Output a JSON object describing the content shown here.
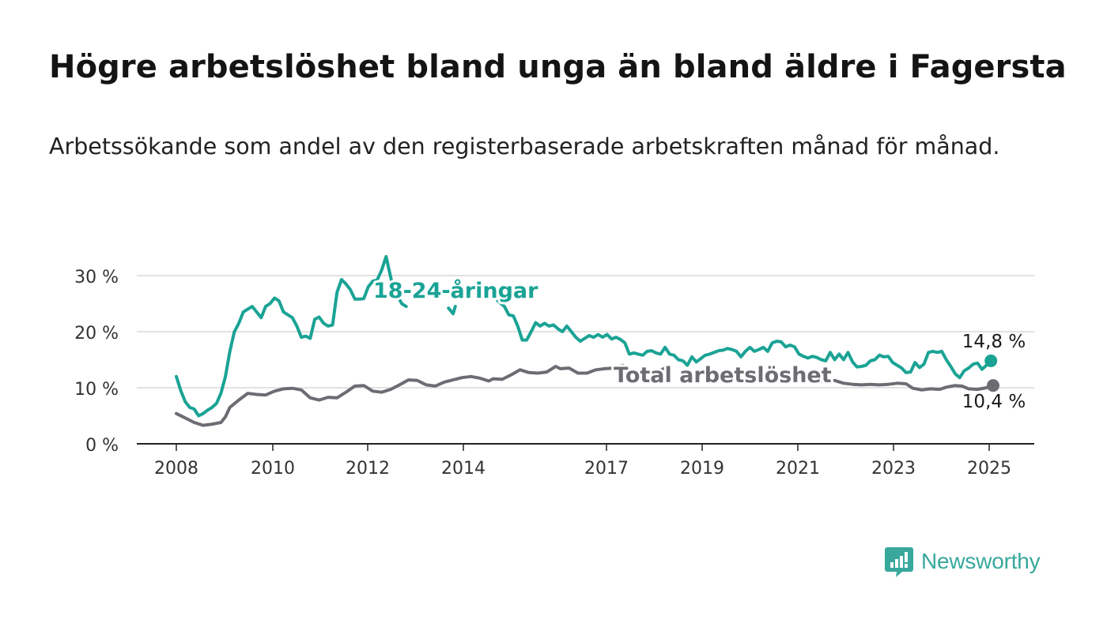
{
  "header": {
    "title": "Högre arbetslöshet bland unga än bland äldre i Fagersta",
    "subtitle": "Arbetssökande som andel av den registerbaserade arbetskraften månad för månad."
  },
  "brand": {
    "name": "Newsworthy",
    "icon": "newsworthy-logo-icon",
    "color": "#38a89d"
  },
  "chart_data": {
    "type": "line",
    "title": "Högre arbetslöshet bland unga än bland äldre i Fagersta",
    "subtitle": "Arbetssökande som andel av den registerbaserade arbetskraften månad för månad.",
    "xlabel": "",
    "ylabel": "",
    "xlim": [
      2008,
      2025.6
    ],
    "ylim": [
      0,
      32
    ],
    "y_ticks": [
      0,
      10,
      20,
      30
    ],
    "y_tick_labels": [
      "0 %",
      "10 %",
      "20 %",
      "30 %"
    ],
    "x_ticks": [
      2008,
      2010,
      2012,
      2014,
      2017,
      2019,
      2021,
      2023,
      2025
    ],
    "x_tick_labels": [
      "2008",
      "2010",
      "2012",
      "2014",
      "2017",
      "2019",
      "2021",
      "2023",
      "2025"
    ],
    "grid": "horizontal",
    "legend": "direct labels on lines",
    "series": [
      {
        "name": "18-24-åringar",
        "color": "#1aa395",
        "end_label": "14,8 %",
        "points": [
          [
            2008.0,
            12.0
          ],
          [
            2008.1,
            9.5
          ],
          [
            2008.2,
            7.5
          ],
          [
            2008.3,
            6.5
          ],
          [
            2008.4,
            6.2
          ],
          [
            2008.5,
            5.0
          ],
          [
            2008.6,
            5.4
          ],
          [
            2008.7,
            6.0
          ],
          [
            2008.8,
            6.5
          ],
          [
            2008.9,
            7.2
          ],
          [
            2009.0,
            9.0
          ],
          [
            2009.1,
            12.0
          ],
          [
            2009.2,
            16.5
          ],
          [
            2009.3,
            20.0
          ],
          [
            2009.4,
            21.5
          ],
          [
            2009.5,
            23.5
          ],
          [
            2009.6,
            24.0
          ],
          [
            2009.7,
            24.5
          ],
          [
            2009.8,
            23.5
          ],
          [
            2009.9,
            22.5
          ],
          [
            2010.0,
            24.5
          ],
          [
            2010.1,
            25.0
          ],
          [
            2010.2,
            26.0
          ],
          [
            2010.3,
            25.5
          ],
          [
            2010.4,
            23.5
          ],
          [
            2010.5,
            23.0
          ],
          [
            2010.6,
            22.5
          ],
          [
            2010.7,
            21.0
          ],
          [
            2010.8,
            19.0
          ],
          [
            2010.9,
            19.2
          ],
          [
            2011.0,
            18.8
          ],
          [
            2011.1,
            22.2
          ],
          [
            2011.2,
            22.6
          ],
          [
            2011.3,
            21.5
          ],
          [
            2011.4,
            21.0
          ],
          [
            2011.5,
            21.2
          ],
          [
            2011.6,
            27.0
          ],
          [
            2011.7,
            29.3
          ],
          [
            2011.8,
            28.5
          ],
          [
            2011.9,
            27.5
          ],
          [
            2012.0,
            25.8
          ],
          [
            2012.1,
            25.8
          ],
          [
            2012.2,
            25.9
          ],
          [
            2012.3,
            28.0
          ],
          [
            2012.4,
            29.0
          ],
          [
            2012.5,
            29.2
          ],
          [
            2012.6,
            31.0
          ],
          [
            2012.7,
            33.4
          ],
          [
            2012.85,
            28.0
          ]
        ],
        "segments_after_gap": [
          [
            [
              2012.95,
              26.5
            ],
            [
              2013.05,
              25.0
            ],
            [
              2013.15,
              24.5
            ]
          ],
          [
            [
              2014.1,
              24.2
            ],
            [
              2014.2,
              23.2
            ],
            [
              2014.25,
              24.5
            ]
          ],
          [
            [
              2015.2,
              25.5
            ],
            [
              2015.35,
              24.5
            ],
            [
              2015.45,
              23.0
            ],
            [
              2015.55,
              22.8
            ],
            [
              2015.65,
              21.0
            ],
            [
              2015.75,
              18.5
            ],
            [
              2015.85,
              18.5
            ],
            [
              2015.95,
              20.0
            ],
            [
              2016.05,
              21.6
            ],
            [
              2016.15,
              21.0
            ],
            [
              2016.25,
              21.5
            ],
            [
              2016.35,
              21.0
            ],
            [
              2016.45,
              21.2
            ],
            [
              2016.55,
              20.5
            ],
            [
              2016.65,
              20.0
            ],
            [
              2016.75,
              21.0
            ],
            [
              2016.85,
              20.0
            ],
            [
              2016.95,
              19.0
            ],
            [
              2017.05,
              18.3
            ],
            [
              2017.15,
              18.8
            ],
            [
              2017.25,
              19.3
            ],
            [
              2017.35,
              19.0
            ],
            [
              2017.45,
              19.5
            ],
            [
              2017.55,
              19.0
            ],
            [
              2017.65,
              19.5
            ],
            [
              2017.75,
              18.7
            ],
            [
              2017.85,
              19.0
            ],
            [
              2017.95,
              18.6
            ],
            [
              2018.05,
              18.0
            ],
            [
              2018.15,
              16.0
            ],
            [
              2018.25,
              16.2
            ],
            [
              2018.35,
              16.0
            ],
            [
              2018.45,
              15.8
            ],
            [
              2018.55,
              16.5
            ],
            [
              2018.65,
              16.6
            ],
            [
              2018.75,
              16.2
            ],
            [
              2018.85,
              16.0
            ],
            [
              2018.95,
              17.2
            ],
            [
              2019.05,
              16.0
            ],
            [
              2019.15,
              15.8
            ],
            [
              2019.25,
              15.0
            ],
            [
              2019.35,
              14.8
            ],
            [
              2019.45,
              14.0
            ],
            [
              2019.55,
              15.5
            ],
            [
              2019.65,
              14.6
            ],
            [
              2019.75,
              15.2
            ],
            [
              2019.85,
              15.8
            ],
            [
              2019.95,
              16.0
            ],
            [
              2020.05,
              16.3
            ],
            [
              2020.15,
              16.6
            ],
            [
              2020.25,
              16.7
            ],
            [
              2020.35,
              17.0
            ],
            [
              2020.45,
              16.8
            ],
            [
              2020.55,
              16.5
            ],
            [
              2020.65,
              15.5
            ],
            [
              2020.75,
              16.5
            ],
            [
              2020.85,
              17.2
            ],
            [
              2020.95,
              16.5
            ],
            [
              2021.05,
              16.8
            ],
            [
              2021.15,
              17.2
            ],
            [
              2021.25,
              16.5
            ],
            [
              2021.35,
              18.0
            ],
            [
              2021.45,
              18.3
            ],
            [
              2021.55,
              18.2
            ],
            [
              2021.65,
              17.3
            ],
            [
              2021.75,
              17.6
            ],
            [
              2021.85,
              17.3
            ],
            [
              2021.95,
              16.0
            ],
            [
              2022.05,
              15.6
            ],
            [
              2022.15,
              15.3
            ],
            [
              2022.25,
              15.6
            ],
            [
              2022.35,
              15.4
            ],
            [
              2022.45,
              15.0
            ],
            [
              2022.55,
              14.8
            ],
            [
              2022.65,
              16.3
            ],
            [
              2022.75,
              15.0
            ],
            [
              2022.85,
              16.0
            ],
            [
              2022.95,
              15.0
            ],
            [
              2023.05,
              16.3
            ],
            [
              2023.15,
              14.6
            ],
            [
              2023.25,
              13.7
            ],
            [
              2023.35,
              13.8
            ],
            [
              2023.45,
              14.0
            ],
            [
              2023.55,
              14.8
            ],
            [
              2023.65,
              15.0
            ],
            [
              2023.75,
              15.8
            ],
            [
              2023.85,
              15.5
            ],
            [
              2023.95,
              15.6
            ],
            [
              2024.05,
              14.5
            ],
            [
              2024.15,
              14.0
            ],
            [
              2024.25,
              13.5
            ],
            [
              2024.35,
              12.7
            ],
            [
              2024.45,
              12.8
            ],
            [
              2024.55,
              14.5
            ],
            [
              2024.65,
              13.6
            ],
            [
              2024.75,
              14.2
            ],
            [
              2024.85,
              16.3
            ],
            [
              2024.95,
              16.5
            ],
            [
              2025.05,
              16.3
            ],
            [
              2025.15,
              16.5
            ],
            [
              2025.25,
              15.0
            ],
            [
              2025.35,
              13.8
            ],
            [
              2025.45,
              12.5
            ],
            [
              2025.55,
              11.8
            ],
            [
              2025.65,
              13.0
            ],
            [
              2025.75,
              13.5
            ],
            [
              2025.85,
              14.2
            ],
            [
              2025.95,
              14.4
            ],
            [
              2026.05,
              13.3
            ],
            [
              2026.15,
              14.0
            ],
            [
              2026.25,
              14.8
            ]
          ]
        ]
      },
      {
        "name": "Total arbetslöshet",
        "color": "#6e6c73",
        "end_label": "10,4 %",
        "points": [
          [
            2008.0,
            5.4
          ],
          [
            2008.2,
            4.6
          ],
          [
            2008.4,
            3.8
          ],
          [
            2008.6,
            3.3
          ],
          [
            2008.8,
            3.5
          ],
          [
            2009.0,
            3.8
          ],
          [
            2009.1,
            4.8
          ],
          [
            2009.2,
            6.5
          ],
          [
            2009.4,
            7.8
          ],
          [
            2009.6,
            9.0
          ],
          [
            2009.8,
            8.8
          ],
          [
            2010.0,
            8.7
          ],
          [
            2010.2,
            9.4
          ],
          [
            2010.4,
            9.8
          ],
          [
            2010.6,
            9.9
          ],
          [
            2010.8,
            9.6
          ],
          [
            2011.0,
            8.2
          ],
          [
            2011.2,
            7.8
          ],
          [
            2011.4,
            8.3
          ],
          [
            2011.6,
            8.2
          ],
          [
            2011.8,
            9.2
          ],
          [
            2012.0,
            10.3
          ],
          [
            2012.2,
            10.4
          ],
          [
            2012.4,
            9.4
          ],
          [
            2012.6,
            9.2
          ],
          [
            2012.8,
            9.7
          ],
          [
            2013.0,
            10.5
          ],
          [
            2013.2,
            11.4
          ],
          [
            2013.4,
            11.3
          ],
          [
            2013.6,
            10.5
          ],
          [
            2013.8,
            10.3
          ],
          [
            2014.0,
            11.0
          ],
          [
            2014.2,
            11.4
          ],
          [
            2014.4,
            11.8
          ],
          [
            2014.6,
            12.0
          ],
          [
            2014.8,
            11.7
          ],
          [
            2015.0,
            11.2
          ],
          [
            2015.1,
            11.6
          ],
          [
            2015.3,
            11.5
          ],
          [
            2015.5,
            12.3
          ],
          [
            2015.7,
            13.2
          ],
          [
            2015.9,
            12.7
          ],
          [
            2016.1,
            12.6
          ],
          [
            2016.3,
            12.8
          ],
          [
            2016.5,
            13.8
          ],
          [
            2016.6,
            13.4
          ],
          [
            2016.8,
            13.5
          ],
          [
            2017.0,
            12.6
          ],
          [
            2017.2,
            12.6
          ],
          [
            2017.4,
            13.2
          ],
          [
            2017.6,
            13.4
          ],
          [
            2017.8,
            13.5
          ],
          [
            2018.0,
            14.0
          ],
          [
            2018.2,
            13.0
          ],
          [
            2018.4,
            12.7
          ],
          [
            2018.6,
            12.7
          ],
          [
            2018.8,
            12.9
          ],
          [
            2019.0,
            13.7
          ]
        ],
        "segments_after_gap": [
          [
            [
              2022.4,
              11.0
            ],
            [
              2022.5,
              11.2
            ],
            [
              2022.6,
              11.0
            ]
          ],
          [
            [
              2022.75,
              11.3
            ],
            [
              2022.95,
              10.8
            ],
            [
              2023.15,
              10.6
            ],
            [
              2023.35,
              10.5
            ],
            [
              2023.55,
              10.6
            ],
            [
              2023.75,
              10.5
            ],
            [
              2023.95,
              10.6
            ],
            [
              2024.15,
              10.8
            ],
            [
              2024.35,
              10.7
            ],
            [
              2024.5,
              9.9
            ],
            [
              2024.7,
              9.6
            ],
            [
              2024.9,
              9.8
            ],
            [
              2025.1,
              9.7
            ],
            [
              2025.25,
              10.1
            ],
            [
              2025.45,
              10.4
            ],
            [
              2025.6,
              10.3
            ],
            [
              2025.75,
              9.8
            ],
            [
              2025.95,
              9.7
            ],
            [
              2026.15,
              10.0
            ],
            [
              2026.3,
              10.4
            ]
          ]
        ]
      }
    ],
    "annotations": [
      {
        "text": "18-24-åringar",
        "series": "18-24-åringar"
      },
      {
        "text": "Total arbetslöshet",
        "series": "Total arbetslöshet"
      }
    ]
  }
}
